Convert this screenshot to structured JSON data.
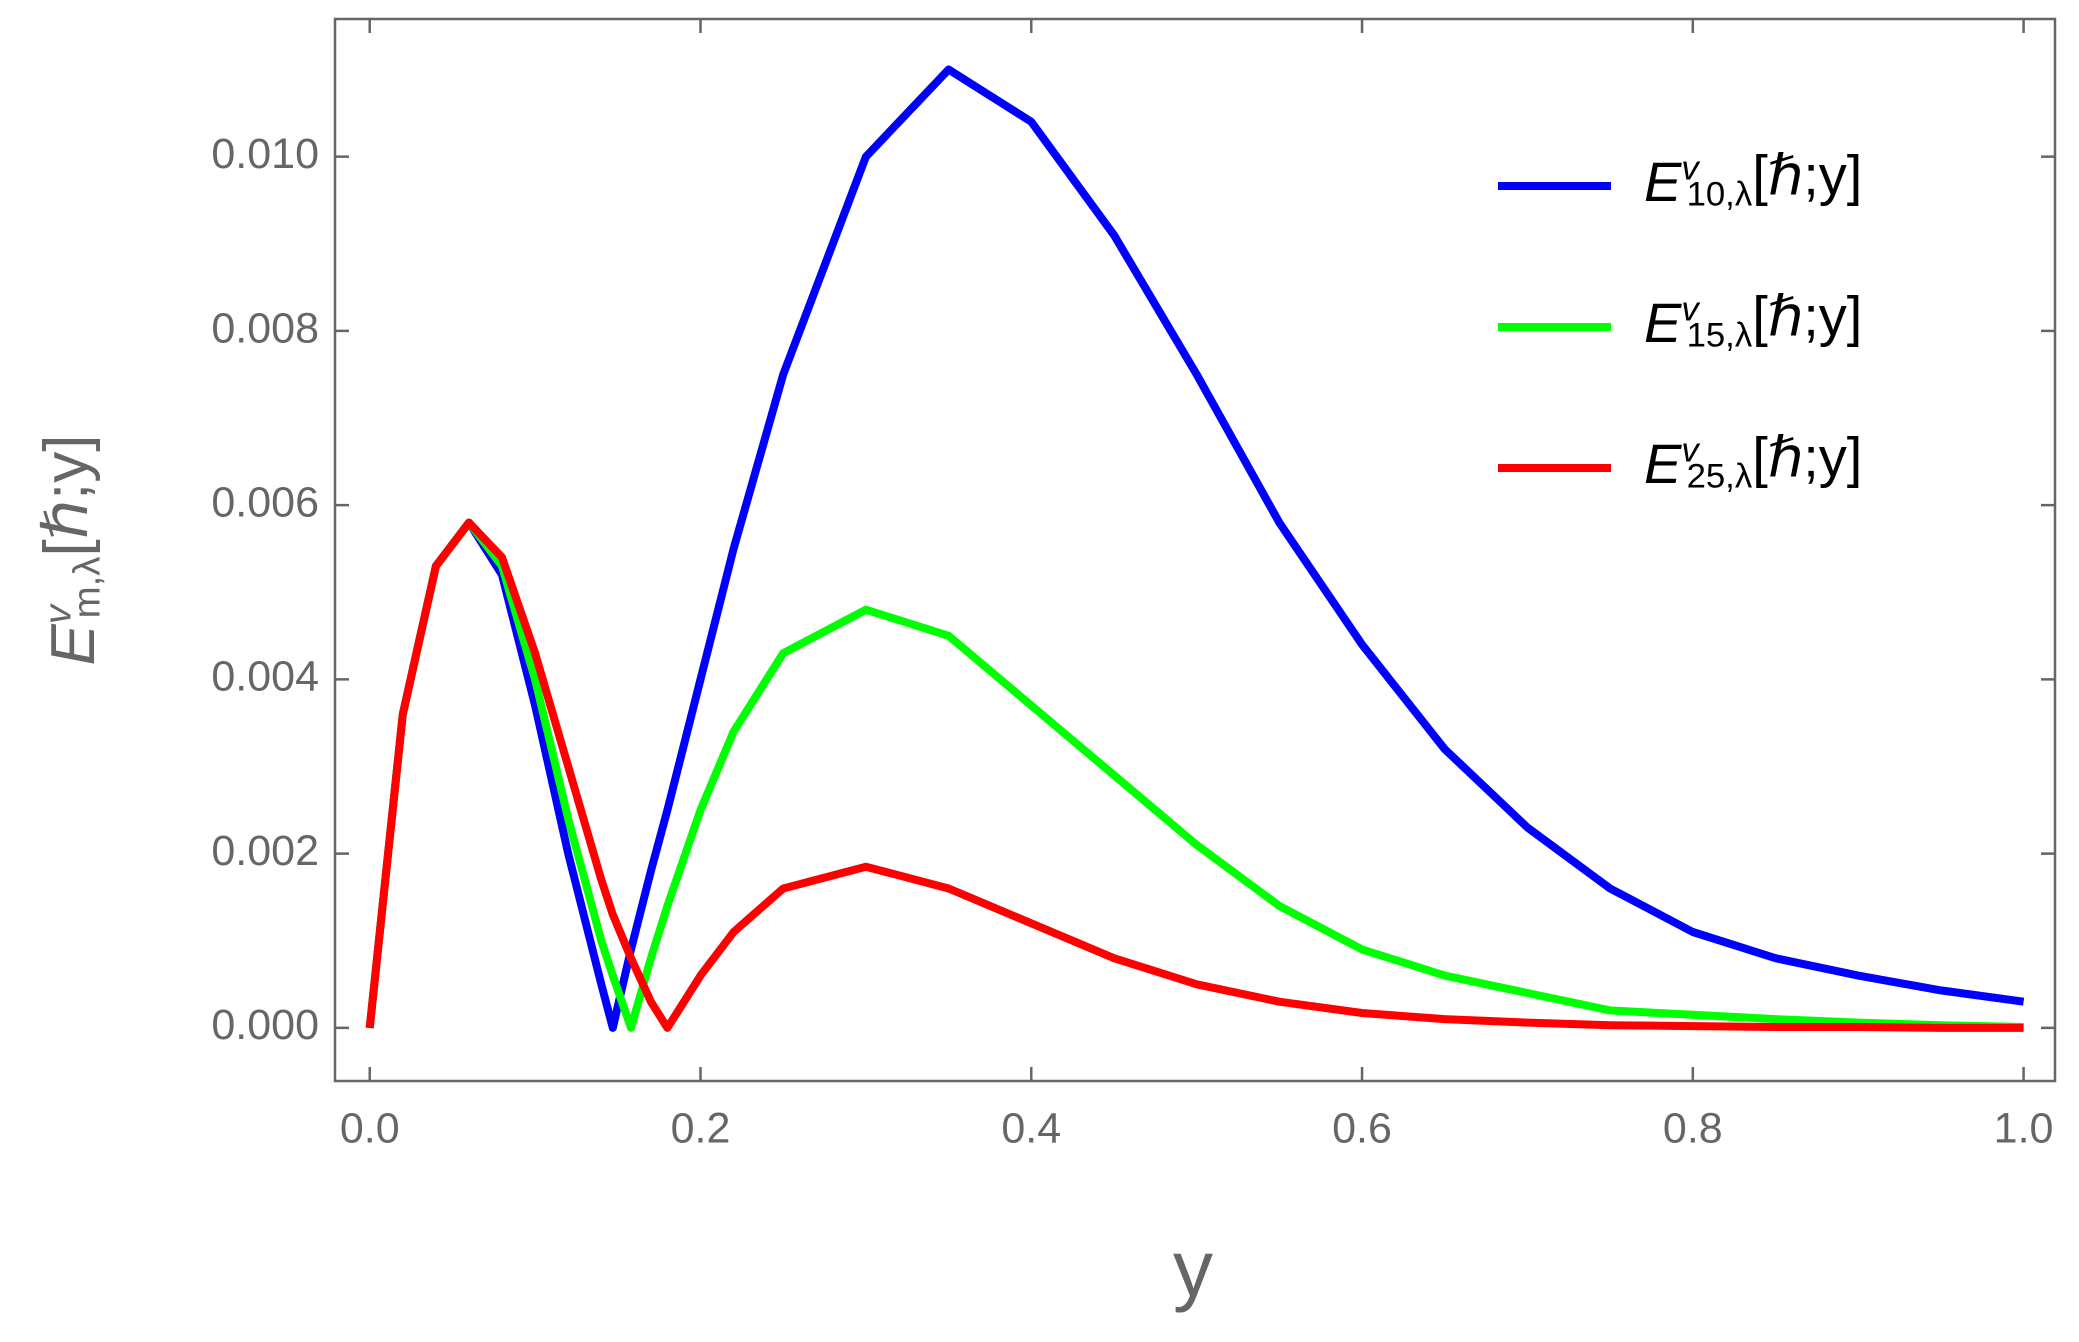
{
  "chart_data": {
    "type": "line",
    "x_label": "y",
    "y_label": "Evm,λ[ℏ;y]",
    "x": [
      0,
      0.02,
      0.04,
      0.06,
      0.08,
      0.1,
      0.12,
      0.14,
      0.147,
      0.158,
      0.17,
      0.18,
      0.2,
      0.22,
      0.25,
      0.3,
      0.35,
      0.4,
      0.45,
      0.5,
      0.55,
      0.6,
      0.65,
      0.7,
      0.75,
      0.8,
      0.85,
      0.9,
      0.95,
      1.0
    ],
    "series": [
      {
        "name": "Ev10,λ[ℏ;y]",
        "color": "#0000ff",
        "values": [
          0,
          0.0036,
          0.0053,
          0.0058,
          0.0052,
          0.0037,
          0.002,
          0.0005,
          0,
          0.0009,
          0.0018,
          0.0025,
          0.004,
          0.0055,
          0.0075,
          0.01,
          0.011,
          0.0104,
          0.0091,
          0.0075,
          0.0058,
          0.0044,
          0.0032,
          0.0023,
          0.0016,
          0.0011,
          0.0008,
          0.0006,
          0.00043,
          0.0003
        ]
      },
      {
        "name": "Ev15,λ[ℏ;y]",
        "color": "#00ff00",
        "values": [
          0,
          0.0036,
          0.0053,
          0.0058,
          0.0053,
          0.004,
          0.0024,
          0.001,
          0.0006,
          0,
          0.0008,
          0.0014,
          0.0025,
          0.0034,
          0.0043,
          0.0048,
          0.0045,
          0.0037,
          0.0029,
          0.0021,
          0.0014,
          0.0009,
          0.0006,
          0.0004,
          0.0002,
          0.00015,
          0.0001,
          6e-05,
          3e-05,
          1e-05
        ]
      },
      {
        "name": "Ev25,λ[ℏ;y]",
        "color": "#ff0000",
        "values": [
          0,
          0.0036,
          0.0053,
          0.0058,
          0.0054,
          0.0043,
          0.003,
          0.0017,
          0.0013,
          0.0008,
          0.0003,
          0,
          0.0006,
          0.0011,
          0.0016,
          0.00185,
          0.0016,
          0.0012,
          0.0008,
          0.0005,
          0.0003,
          0.00017,
          0.0001,
          6e-05,
          3e-05,
          2e-05,
          1e-05,
          1e-05,
          0,
          0
        ]
      }
    ],
    "xlim": [
      -0.021,
      1.019
    ],
    "ylim": [
      -0.00061,
      0.01158
    ],
    "xticks": [
      {
        "value": 0,
        "label": "0.0"
      },
      0.2,
      0.4,
      0.6,
      0.8,
      {
        "value": 1,
        "label": "1.0"
      }
    ],
    "yticks": [
      {
        "value": 0,
        "label": "0.000"
      },
      {
        "value": 0.002,
        "label": "0.002"
      },
      {
        "value": 0.004,
        "label": "0.004"
      },
      {
        "value": 0.006,
        "label": "0.006"
      },
      {
        "value": 0.008,
        "label": "0.008"
      },
      {
        "value": 0.01,
        "label": "0.010"
      }
    ],
    "legend": "upper right"
  }
}
